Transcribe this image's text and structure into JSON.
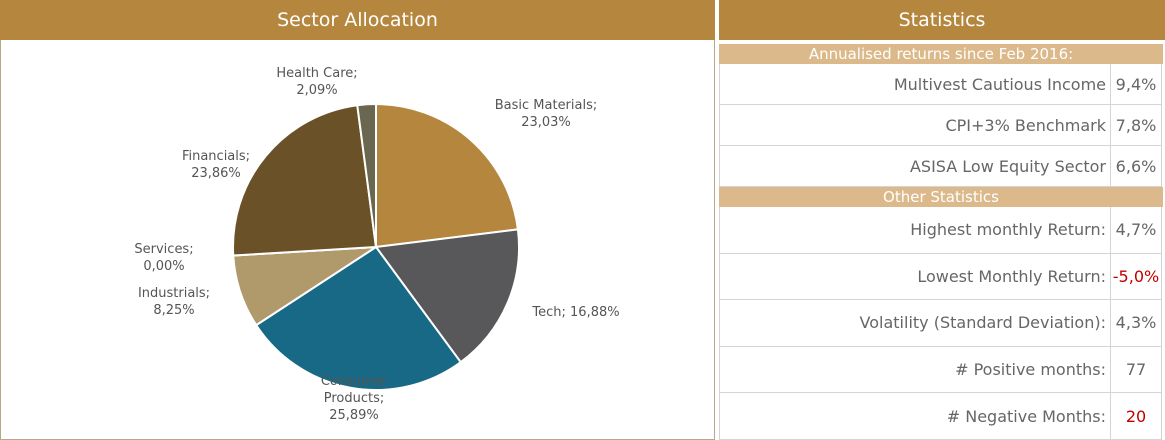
{
  "chart_data": {
    "type": "pie",
    "title": "Sector Allocation",
    "categories": [
      "Basic Materials;",
      "Tech;",
      "Consumer Products;",
      "Industrials;",
      "Services;",
      "Financials;",
      "Health Care;"
    ],
    "values": [
      23.03,
      16.88,
      25.89,
      8.25,
      0.0,
      23.86,
      2.09
    ],
    "value_labels": [
      "23,03%",
      "16,88%",
      "25,89%",
      "8,25%",
      "0,00%",
      "23,86%",
      "2,09%"
    ],
    "colors": [
      "#b5873e",
      "#58585a",
      "#176986",
      "#b09a6c",
      "#c9c9c9",
      "#6b5128",
      "#6b6650"
    ]
  },
  "statistics": {
    "title": "Statistics",
    "sections": [
      {
        "heading": "Annualised returns since Feb 2016:",
        "rows": [
          {
            "label": "Multivest Cautious Income",
            "value": "9,4%"
          },
          {
            "label": "CPI+3% Benchmark",
            "value": "7,8%"
          },
          {
            "label": "ASISA Low Equity Sector",
            "value": "6,6%"
          }
        ]
      },
      {
        "heading": "Other Statistics",
        "rows": [
          {
            "label": "Highest monthly Return:",
            "value": "4,7%"
          },
          {
            "label": "Lowest Monthly Return:",
            "value": "-5,0%",
            "color": "#c00000"
          },
          {
            "label": "Volatility (Standard Deviation):",
            "value": "4,3%"
          },
          {
            "label": "# Positive months:",
            "value": "77"
          },
          {
            "label": "# Negative Months:",
            "value": "20",
            "color": "#c00000"
          }
        ]
      }
    ]
  }
}
